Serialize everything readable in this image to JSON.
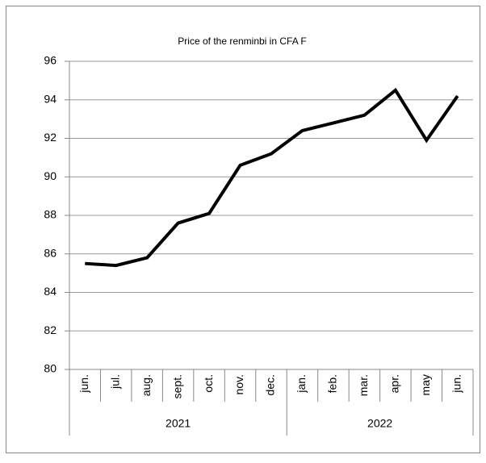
{
  "chart_data": {
    "type": "line",
    "title": "Price of the renminbi in CFA F",
    "category_groups": [
      {
        "label": "2021",
        "categories": [
          "jun.",
          "jul.",
          "aug.",
          "sept.",
          "oct.",
          "nov.",
          "dec."
        ]
      },
      {
        "label": "2022",
        "categories": [
          "jan.",
          "feb.",
          "mar.",
          "apr.",
          "may",
          "jun."
        ]
      }
    ],
    "values": [
      85.5,
      85.4,
      85.8,
      87.6,
      88.1,
      90.6,
      91.2,
      92.4,
      92.8,
      93.2,
      94.5,
      91.9,
      94.2
    ],
    "color": "#000000",
    "ylim": [
      80,
      96
    ],
    "yticks": [
      80,
      82,
      84,
      86,
      88,
      90,
      92,
      94,
      96
    ],
    "grid": true
  }
}
